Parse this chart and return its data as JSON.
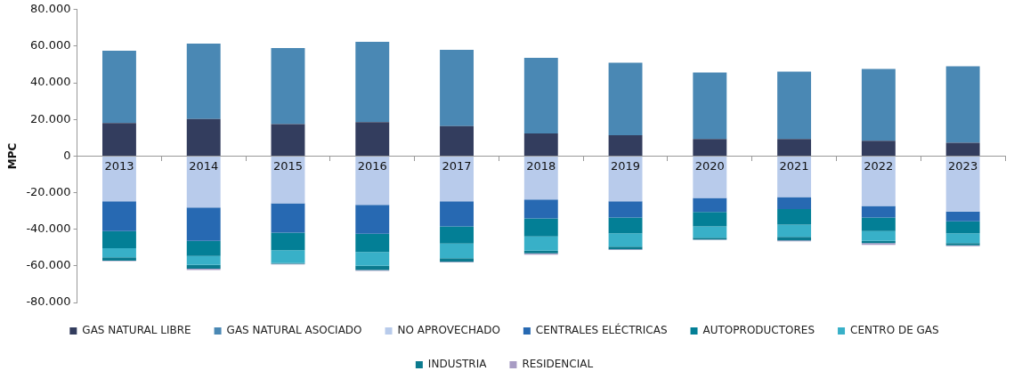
{
  "chart_data": {
    "type": "bar",
    "stacked": true,
    "ylabel": "MPC",
    "categories": [
      "2013",
      "2014",
      "2015",
      "2016",
      "2017",
      "2018",
      "2019",
      "2020",
      "2021",
      "2022",
      "2023"
    ],
    "series": [
      {
        "name": "GAS NATURAL LIBRE",
        "color": "#333d5e",
        "values": [
          18000,
          20200,
          17500,
          18500,
          16300,
          12400,
          11400,
          9300,
          9300,
          8300,
          7300
        ]
      },
      {
        "name": "GAS NATURAL ASOCIADO",
        "color": "#4a88b4",
        "values": [
          39500,
          41200,
          41500,
          43900,
          41700,
          41200,
          39600,
          36300,
          36800,
          39300,
          41700
        ]
      },
      {
        "name": "NO APROVECHADO",
        "color": "#b8cbeb",
        "values": [
          -24700,
          -28100,
          -25800,
          -26600,
          -24700,
          -23700,
          -24700,
          -22900,
          -22400,
          -27300,
          -30300
        ]
      },
      {
        "name": "CENTRALES ELÉCTRICAS",
        "color": "#2769b2",
        "values": [
          -16300,
          -18300,
          -16100,
          -15800,
          -13800,
          -10400,
          -8900,
          -7600,
          -6600,
          -6300,
          -5300
        ]
      },
      {
        "name": "AUTOPRODUCTORES",
        "color": "#037f96",
        "values": [
          -9300,
          -8200,
          -9500,
          -10000,
          -9300,
          -9800,
          -8600,
          -8000,
          -8500,
          -7400,
          -6600
        ]
      },
      {
        "name": "CENTRO DE GAS",
        "color": "#38b0c8",
        "values": [
          -5000,
          -4900,
          -7100,
          -7600,
          -8000,
          -7800,
          -7300,
          -6200,
          -6600,
          -5300,
          -5400
        ]
      },
      {
        "name": "INDUSTRIA",
        "color": "#0b7a8e",
        "values": [
          -1800,
          -2000,
          -300,
          -2200,
          -2000,
          -1500,
          -1500,
          -900,
          -2000,
          -1300,
          -1200
        ]
      },
      {
        "name": "RESIDENCIAL",
        "color": "#a89cc4",
        "values": [
          -300,
          -700,
          -400,
          -500,
          -300,
          -700,
          -300,
          -300,
          -500,
          -900,
          -500
        ]
      }
    ],
    "ylim": [
      -80000,
      80000
    ],
    "yticks": [
      {
        "value": -80000,
        "label": "-80.000"
      },
      {
        "value": -60000,
        "label": "-60.000"
      },
      {
        "value": -40000,
        "label": "-40.000"
      },
      {
        "value": -20000,
        "label": "-20.000"
      },
      0,
      {
        "value": 20000,
        "label": "20.000"
      },
      {
        "value": 40000,
        "label": "40.000"
      },
      {
        "value": 60000,
        "label": "60.000"
      },
      {
        "value": 80000,
        "label": "80.000"
      }
    ],
    "grid": false,
    "legend": "bottom"
  }
}
